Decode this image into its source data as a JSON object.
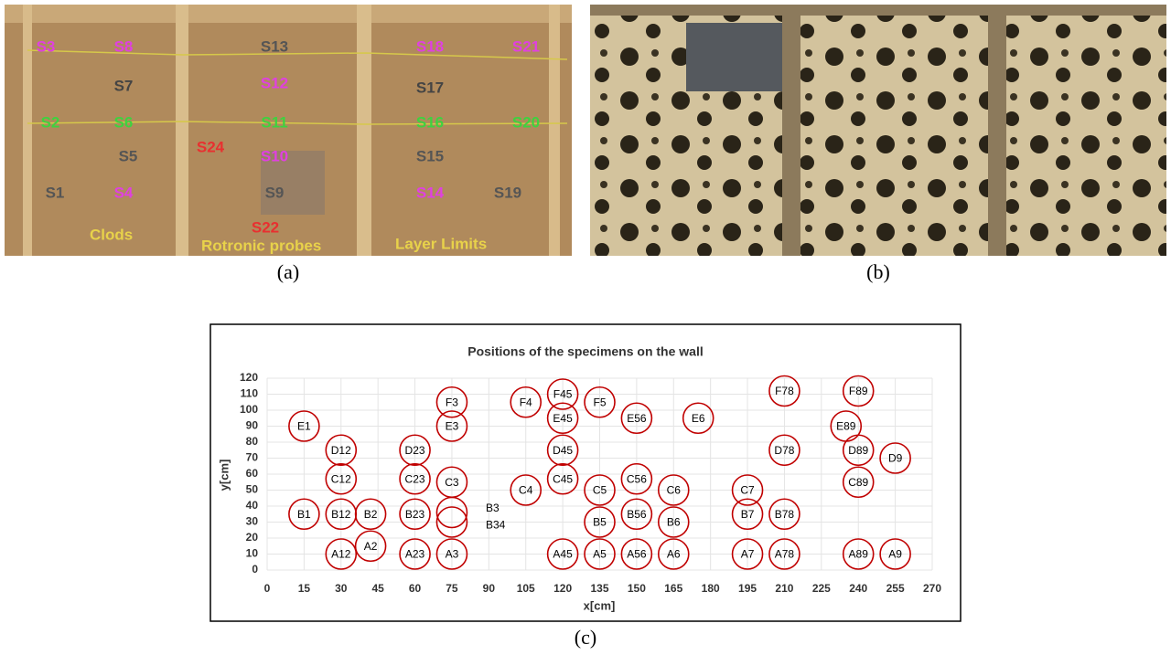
{
  "panel_a": {
    "caption": "(a)",
    "sensors": [
      {
        "text": "S3",
        "color": "#e040e0"
      },
      {
        "text": "S8",
        "color": "#e040e0"
      },
      {
        "text": "S13",
        "color": "#555555"
      },
      {
        "text": "S18",
        "color": "#e040e0"
      },
      {
        "text": "S21",
        "color": "#e040e0"
      },
      {
        "text": "S7",
        "color": "#444444"
      },
      {
        "text": "S12",
        "color": "#e040e0"
      },
      {
        "text": "S17",
        "color": "#444444"
      },
      {
        "text": "S2",
        "color": "#3fd23f"
      },
      {
        "text": "S6",
        "color": "#3fd23f"
      },
      {
        "text": "S11",
        "color": "#3fd23f"
      },
      {
        "text": "S16",
        "color": "#3fd23f"
      },
      {
        "text": "S20",
        "color": "#3fd23f"
      },
      {
        "text": "S24",
        "color": "#e83030"
      },
      {
        "text": "S5",
        "color": "#555555"
      },
      {
        "text": "S10",
        "color": "#e040e0"
      },
      {
        "text": "S15",
        "color": "#555555"
      },
      {
        "text": "S1",
        "color": "#555555"
      },
      {
        "text": "S4",
        "color": "#e040e0"
      },
      {
        "text": "S9",
        "color": "#555555"
      },
      {
        "text": "S14",
        "color": "#e040e0"
      },
      {
        "text": "S19",
        "color": "#555555"
      },
      {
        "text": "S22",
        "color": "#e83030"
      }
    ],
    "annotations": [
      "Clods",
      "Rotronic probes",
      "Layer Limits"
    ]
  },
  "panel_b": {
    "caption": "(b)"
  },
  "caption_c": "(c)",
  "chart_data": {
    "type": "scatter",
    "title": "Positions of the specimens on the wall",
    "x_label": "x[cm]",
    "y_label": "y[cm]",
    "color": "#c00000",
    "grid": true,
    "xlim": [
      0,
      270
    ],
    "ylim": [
      0,
      120
    ],
    "xticks": [
      0,
      15,
      30,
      45,
      60,
      75,
      90,
      105,
      120,
      135,
      150,
      165,
      180,
      195,
      210,
      225,
      240,
      255,
      270
    ],
    "yticks": [
      0,
      10,
      20,
      30,
      40,
      50,
      60,
      70,
      80,
      90,
      100,
      110,
      120
    ],
    "points": [
      {
        "label": "E1",
        "x": 15,
        "y": 90
      },
      {
        "label": "B1",
        "x": 15,
        "y": 35
      },
      {
        "label": "D12",
        "x": 30,
        "y": 75
      },
      {
        "label": "C12",
        "x": 30,
        "y": 57
      },
      {
        "label": "B12",
        "x": 30,
        "y": 35
      },
      {
        "label": "A12",
        "x": 30,
        "y": 10
      },
      {
        "label": "B2",
        "x": 42,
        "y": 35
      },
      {
        "label": "A2",
        "x": 42,
        "y": 15
      },
      {
        "label": "D23",
        "x": 60,
        "y": 75
      },
      {
        "label": "C23",
        "x": 60,
        "y": 57
      },
      {
        "label": "B23",
        "x": 60,
        "y": 35
      },
      {
        "label": "A23",
        "x": 60,
        "y": 10
      },
      {
        "label": "F3",
        "x": 75,
        "y": 105
      },
      {
        "label": "E3",
        "x": 75,
        "y": 90
      },
      {
        "label": "C3",
        "x": 75,
        "y": 55
      },
      {
        "label": "B3",
        "x": 75,
        "y": 36,
        "label_outside": true
      },
      {
        "label": "B34",
        "x": 75,
        "y": 30,
        "label_outside": true
      },
      {
        "label": "A3",
        "x": 75,
        "y": 10
      },
      {
        "label": "F4",
        "x": 105,
        "y": 105
      },
      {
        "label": "C4",
        "x": 105,
        "y": 50
      },
      {
        "label": "F45",
        "x": 120,
        "y": 110
      },
      {
        "label": "E45",
        "x": 120,
        "y": 95
      },
      {
        "label": "D45",
        "x": 120,
        "y": 75
      },
      {
        "label": "C45",
        "x": 120,
        "y": 57
      },
      {
        "label": "A45",
        "x": 120,
        "y": 10
      },
      {
        "label": "F5",
        "x": 135,
        "y": 105
      },
      {
        "label": "C5",
        "x": 135,
        "y": 50
      },
      {
        "label": "B5",
        "x": 135,
        "y": 30
      },
      {
        "label": "A5",
        "x": 135,
        "y": 10
      },
      {
        "label": "E56",
        "x": 150,
        "y": 95
      },
      {
        "label": "C56",
        "x": 150,
        "y": 57
      },
      {
        "label": "B56",
        "x": 150,
        "y": 35
      },
      {
        "label": "A56",
        "x": 150,
        "y": 10
      },
      {
        "label": "C6",
        "x": 165,
        "y": 50
      },
      {
        "label": "B6",
        "x": 165,
        "y": 30
      },
      {
        "label": "A6",
        "x": 165,
        "y": 10
      },
      {
        "label": "E6",
        "x": 175,
        "y": 95
      },
      {
        "label": "C7",
        "x": 195,
        "y": 50
      },
      {
        "label": "B7",
        "x": 195,
        "y": 35
      },
      {
        "label": "A7",
        "x": 195,
        "y": 10
      },
      {
        "label": "F78",
        "x": 210,
        "y": 112
      },
      {
        "label": "D78",
        "x": 210,
        "y": 75
      },
      {
        "label": "B78",
        "x": 210,
        "y": 35
      },
      {
        "label": "A78",
        "x": 210,
        "y": 10
      },
      {
        "label": "F89",
        "x": 240,
        "y": 112
      },
      {
        "label": "E89",
        "x": 235,
        "y": 90
      },
      {
        "label": "D89",
        "x": 240,
        "y": 75
      },
      {
        "label": "C89",
        "x": 240,
        "y": 55
      },
      {
        "label": "A89",
        "x": 240,
        "y": 10
      },
      {
        "label": "D9",
        "x": 255,
        "y": 70
      },
      {
        "label": "A9",
        "x": 255,
        "y": 10
      }
    ]
  }
}
